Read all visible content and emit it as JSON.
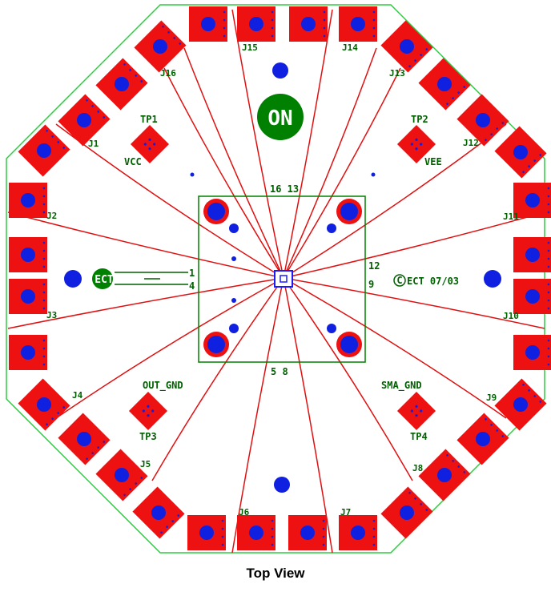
{
  "caption": "Top View",
  "colors": {
    "outline": "#2ecc40",
    "pad": "#ee1111",
    "hole": "#1020e0",
    "trace": "#e01010",
    "silk": "#006000",
    "on_badge": "#008000"
  },
  "connectors": [
    "J1",
    "J2",
    "J3",
    "J4",
    "J5",
    "J6",
    "J7",
    "J8",
    "J9",
    "J10",
    "J11",
    "J12",
    "J13",
    "J14",
    "J15",
    "J16"
  ],
  "test_points": {
    "tp1": "TP1",
    "tp1_net": "VCC",
    "tp2": "TP2",
    "tp2_net": "VEE",
    "tp3": "TP3",
    "tp3_net": "OUT_GND",
    "tp4": "TP4",
    "tp4_net": "SMA_GND"
  },
  "pin_labels": {
    "p16_13": "16 13",
    "p1": "1",
    "p4": "4",
    "p12": "12",
    "p9": "9",
    "p5_8": "5 8"
  },
  "on_badge": "ON",
  "ect_left": "ECT",
  "ect_right": "ECT 07/03",
  "copyright_symbol": "C"
}
